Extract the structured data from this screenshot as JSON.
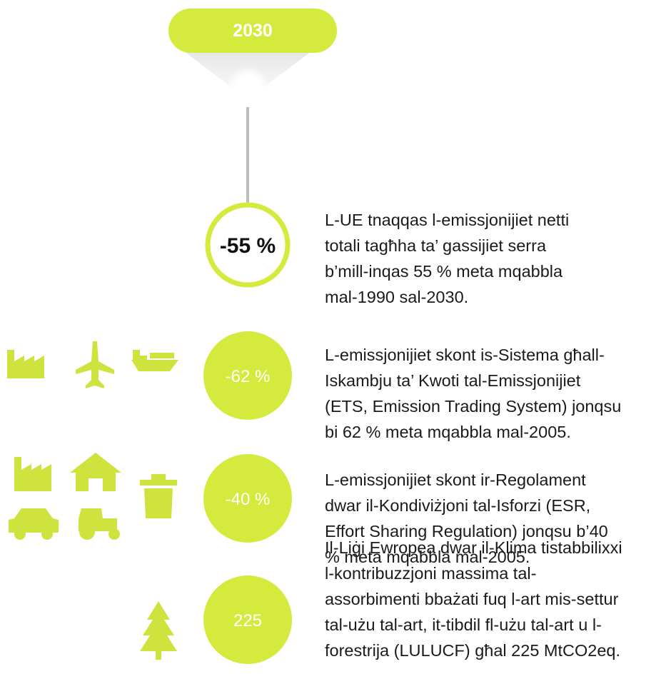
{
  "header": {
    "label": "2030"
  },
  "items": [
    {
      "badge": "-55 %",
      "lines": [
        "L-UE tnaqqas l-emissjonijiet netti",
        "totali tagħha ta’ gassijiet serra",
        "b’mill-inqas 55 % meta mqabbla",
        "mal-1990 sal-2030."
      ]
    },
    {
      "badge": "-62 %",
      "lines": [
        "L-emissjonijiet skont is-Sistema għall-",
        "Iskambju ta’ Kwoti tal-Emissjonijiet",
        "(ETS, Emission Trading System) jonqsu",
        "bi 62 % meta mqabbla mal-2005."
      ]
    },
    {
      "badge": "-40 %",
      "lines": [
        "L-emissjonijiet skont ir-Regolament",
        "dwar il-Kondiviżjoni tal-Isforzi (ESR,",
        "Effort Sharing Regulation) jonqsu b’40",
        "% meta mqabbla mal-2005."
      ]
    },
    {
      "badge": "225",
      "lines": [
        "Il-Liġi Ewropea dwar il-Klima tistabbilixxi",
        "l-kontribuzzjoni massima tal-",
        "assorbimenti bbażati fuq l-art mis-settur",
        "tal-użu tal-art, it-tibdil fl-użu tal-art u l-",
        "forestrija (LULUCF) għal 225 MtCO2eq."
      ]
    }
  ]
}
